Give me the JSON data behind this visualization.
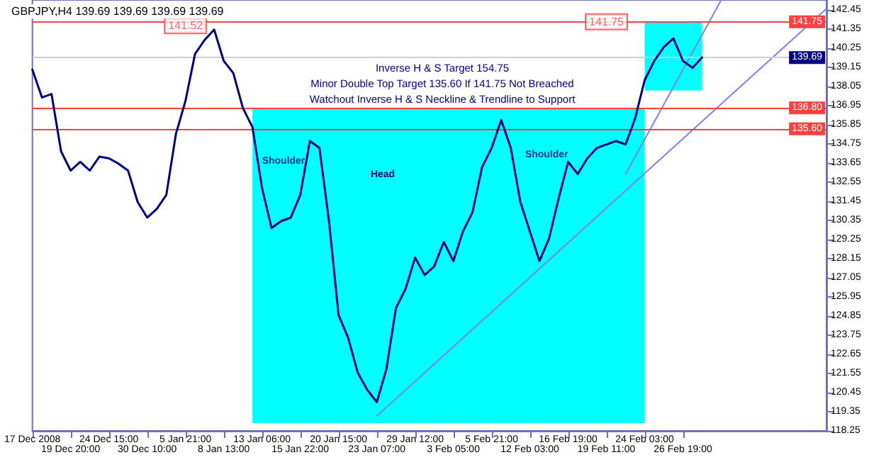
{
  "chart_data": {
    "type": "line",
    "title": "GBPJPY,H4 139.69 139.69 139.69 139.69",
    "categories": [
      "17 Dec 2008",
      null,
      null,
      null,
      "19 Dec 20:00",
      null,
      null,
      null,
      "24 Dec 15:00",
      null,
      null,
      null,
      "30 Dec 10:00",
      null,
      null,
      null,
      "5 Jan 21:00",
      null,
      null,
      null,
      "8 Jan 13:00",
      null,
      null,
      null,
      "13 Jan 06:00",
      null,
      null,
      null,
      "15 Jan 22:00",
      null,
      null,
      null,
      "20 Jan 15:00",
      null,
      null,
      null,
      "23 Jan 07:00",
      null,
      null,
      null,
      "29 Jan 12:00",
      null,
      null,
      null,
      "3 Feb 05:00",
      null,
      null,
      null,
      "5 Feb 21:00",
      null,
      null,
      null,
      "12 Feb 03:00",
      null,
      null,
      null,
      "16 Feb 19:00",
      null,
      null,
      null,
      "19 Feb 11:00",
      null,
      null,
      null,
      "24 Feb 03:00",
      null,
      null,
      null,
      "26 Feb 19:00",
      null,
      null,
      null,
      null,
      null,
      null,
      null,
      null,
      null,
      null,
      null,
      null,
      null,
      null,
      null
    ],
    "series": [
      {
        "color": "#000080",
        "values": [
          139.0,
          137.4,
          137.6,
          134.3,
          133.2,
          133.7,
          133.2,
          134.0,
          133.9,
          133.6,
          133.2,
          131.4,
          130.5,
          131.0,
          131.8,
          135.3,
          137.2,
          139.9,
          140.7,
          141.3,
          139.5,
          138.8,
          136.8,
          135.7,
          132.2,
          129.9,
          130.3,
          130.5,
          131.8,
          134.9,
          134.5,
          130.3,
          124.9,
          123.6,
          121.6,
          120.6,
          119.9,
          121.8,
          125.3,
          126.4,
          128.2,
          127.2,
          127.7,
          129.1,
          128.0,
          129.7,
          130.8,
          133.4,
          134.5,
          136.1,
          134.5,
          131.4,
          129.7,
          128.0,
          129.3,
          131.6,
          133.7,
          133.0,
          133.9,
          134.5,
          134.7,
          134.9,
          134.7,
          136.2,
          138.4,
          139.5,
          140.3,
          140.8,
          139.5,
          139.1,
          139.7,
          null,
          null,
          null,
          null,
          null,
          null,
          null,
          null,
          null,
          null,
          null,
          null,
          null
        ]
      },
      {
        "color": "#8080ff",
        "values": [
          null,
          null,
          null,
          null,
          null,
          null,
          null,
          null,
          null,
          null,
          null,
          null,
          null,
          null,
          null,
          null,
          null,
          null,
          null,
          null,
          null,
          null,
          null,
          null,
          null,
          null,
          null,
          null,
          null,
          null,
          null,
          null,
          null,
          null,
          null,
          null,
          119.1,
          null,
          null,
          null,
          null,
          null,
          null,
          null,
          null,
          null,
          null,
          null,
          null,
          null,
          null,
          null,
          null,
          null,
          null,
          null,
          null,
          null,
          null,
          null,
          null,
          null,
          null,
          null,
          null,
          null,
          null,
          null,
          null,
          null,
          null,
          null,
          null,
          null,
          null,
          null,
          null,
          null,
          null,
          null,
          null,
          null,
          null,
          142.5
        ]
      },
      {
        "color": "#8080ff",
        "values": [
          null,
          null,
          null,
          null,
          null,
          null,
          null,
          null,
          null,
          null,
          null,
          null,
          null,
          null,
          null,
          null,
          null,
          null,
          null,
          null,
          null,
          null,
          null,
          null,
          null,
          null,
          null,
          null,
          null,
          null,
          null,
          null,
          null,
          null,
          null,
          null,
          null,
          null,
          null,
          null,
          null,
          null,
          null,
          null,
          null,
          null,
          null,
          null,
          null,
          null,
          null,
          null,
          null,
          null,
          null,
          null,
          null,
          null,
          null,
          null,
          null,
          null,
          133.0,
          null,
          null,
          null,
          null,
          null,
          null,
          null,
          null,
          null,
          143.0,
          null,
          null,
          null,
          null,
          null,
          null,
          null,
          null,
          null,
          null,
          null
        ]
      }
    ],
    "ylim": [
      118.25,
      143.0
    ],
    "yticks": [
      118.25,
      119.35,
      120.45,
      121.55,
      122.65,
      123.75,
      124.85,
      125.95,
      127.05,
      128.15,
      129.25,
      130.35,
      131.45,
      132.55,
      133.65,
      134.75,
      135.85,
      136.95,
      138.05,
      139.15,
      140.25,
      141.35,
      142.45
    ],
    "ref_lines": [
      {
        "axis": "y",
        "value": 141.75,
        "label": "141.75",
        "color": "#ff4040"
      },
      {
        "axis": "y",
        "value": 139.69,
        "label": "139.69",
        "color": "#d0d0d0"
      },
      {
        "axis": "y",
        "value": 136.8,
        "label": "136.80",
        "color": "#ff4040"
      },
      {
        "axis": "y",
        "value": 135.6,
        "label": "135.60",
        "color": "#ff4040"
      }
    ],
    "bands": [
      {
        "axis": "y",
        "from": 118.7,
        "to": 136.8,
        "color": "#00ffff"
      },
      {
        "axis": "y",
        "from": 137.8,
        "to": 141.75,
        "color": "#00ffff"
      }
    ],
    "annotations": [
      "Inverse H & S Target 154.75",
      "Minor Double Top Target 135.60 If 141.75 Not Breached",
      "Watchout Inverse H & S Neckline & Trendline to Support",
      "Head",
      {
        "text": "Shoulder",
        "x": "13 Jan 06:00",
        "y": 133.7
      },
      {
        "text": "Shoulder",
        "x": "16 Feb 19:00",
        "y": 134.1
      },
      {
        "text": "141.52",
        "x": "5 Jan 21:00",
        "y": 141.52
      },
      {
        "text": "141.75",
        "x": "19 Feb 11:00",
        "y": 141.75
      }
    ],
    "grid": false,
    "marker": "none",
    "line_style": "solid"
  }
}
